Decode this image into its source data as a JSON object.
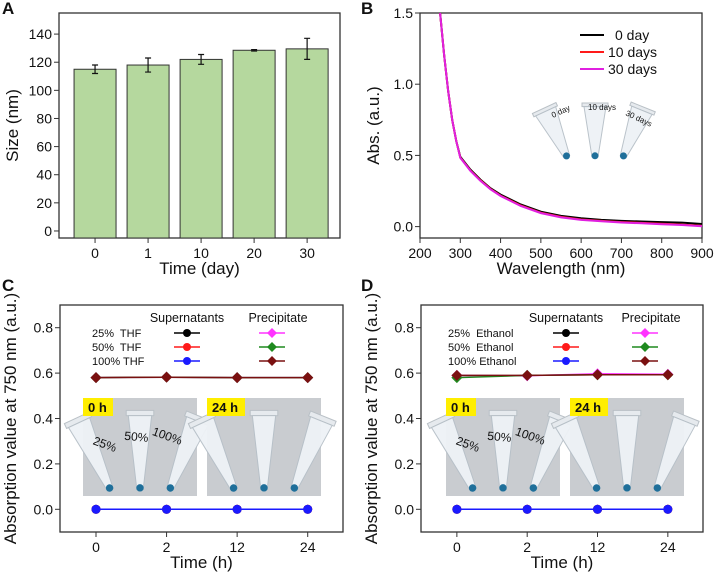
{
  "chart_data": [
    {
      "panel": "A",
      "type": "bar",
      "categories": [
        "0",
        "1",
        "10",
        "20",
        "30"
      ],
      "values": [
        115,
        118,
        122,
        128.5,
        129.5
      ],
      "errors": [
        3,
        5,
        3.5,
        0.5,
        7.5
      ],
      "xlabel": "Time (day)",
      "ylabel": "Size (nm)",
      "ylim": [
        -5,
        155
      ],
      "yticks": [
        0,
        20,
        40,
        60,
        80,
        100,
        120,
        140
      ],
      "bar_color": "#b5d89e",
      "grid": false
    },
    {
      "panel": "B",
      "type": "line",
      "x": [
        250,
        260,
        270,
        280,
        290,
        300,
        325,
        350,
        375,
        400,
        450,
        500,
        550,
        600,
        650,
        700,
        750,
        800,
        850,
        900
      ],
      "series": [
        {
          "name": "0 day",
          "color": "#000000",
          "y": [
            1.5,
            1.2,
            0.95,
            0.75,
            0.6,
            0.49,
            0.4,
            0.33,
            0.27,
            0.225,
            0.155,
            0.105,
            0.075,
            0.058,
            0.047,
            0.04,
            0.036,
            0.032,
            0.028,
            0.018
          ]
        },
        {
          "name": "10 days",
          "color": "#ff1a1a",
          "y": [
            1.5,
            1.2,
            0.95,
            0.75,
            0.6,
            0.485,
            0.395,
            0.325,
            0.265,
            0.218,
            0.148,
            0.098,
            0.068,
            0.05,
            0.04,
            0.032,
            0.026,
            0.02,
            0.014,
            0.005
          ]
        },
        {
          "name": "30 days",
          "color": "#e020e0",
          "y": [
            1.5,
            1.2,
            0.95,
            0.75,
            0.6,
            0.483,
            0.392,
            0.322,
            0.262,
            0.215,
            0.145,
            0.095,
            0.065,
            0.047,
            0.037,
            0.029,
            0.023,
            0.017,
            0.011,
            0.003
          ]
        }
      ],
      "xlabel": "Wavelength (nm)",
      "ylabel": "Abs. (a.u.)",
      "xlim": [
        200,
        900
      ],
      "ylim": [
        -0.08,
        1.5
      ],
      "xticks": [
        200,
        300,
        400,
        500,
        600,
        700,
        800,
        900
      ],
      "yticks": [
        "0.0",
        "0.5",
        "1.0",
        "1.5"
      ],
      "legend": "top-right",
      "inset_photo": {
        "tube_labels": [
          "0 day",
          "10 days",
          "30 days"
        ]
      },
      "grid": false
    },
    {
      "panel": "C",
      "type": "line",
      "categories": [
        "0",
        "2",
        "12",
        "24"
      ],
      "legend_headers": [
        "Supernatants",
        "Precipitate"
      ],
      "legend_rows": [
        "25%  THF",
        "50%  THF",
        "100% THF"
      ],
      "series": [
        {
          "name": "25% THF",
          "group": "Supernatants",
          "marker": "circle",
          "color": "#000000",
          "values": [
            0,
            0,
            0,
            0
          ]
        },
        {
          "name": "50% THF",
          "group": "Supernatants",
          "marker": "circle",
          "color": "#ff1a1a",
          "values": [
            0,
            0,
            0,
            0
          ]
        },
        {
          "name": "100% THF",
          "group": "Supernatants",
          "marker": "circle",
          "color": "#1a1aff",
          "values": [
            0,
            0,
            0,
            0
          ]
        },
        {
          "name": "25% THF",
          "group": "Precipitate",
          "marker": "diamond",
          "color": "#ff33ff",
          "values": [
            0.58,
            0.582,
            0.58,
            0.58
          ]
        },
        {
          "name": "50% THF",
          "group": "Precipitate",
          "marker": "diamond",
          "color": "#1f8a1f",
          "values": [
            0.58,
            0.582,
            0.58,
            0.58
          ]
        },
        {
          "name": "100% THF",
          "group": "Precipitate",
          "marker": "diamond",
          "color": "#7a1010",
          "values": [
            0.58,
            0.582,
            0.58,
            0.58
          ]
        }
      ],
      "xlabel": "Time (h)",
      "ylabel": "Absorption value at 750 nm (a.u.)",
      "ylim": [
        -0.1,
        0.9
      ],
      "yticks": [
        "0.0",
        "0.2",
        "0.4",
        "0.6",
        "0.8"
      ],
      "inset_photos": [
        {
          "label": "0 h",
          "tube_labels": [
            "25%",
            "50%",
            "100%"
          ]
        },
        {
          "label": "24 h",
          "tube_labels": []
        }
      ],
      "grid": false
    },
    {
      "panel": "D",
      "type": "line",
      "categories": [
        "0",
        "2",
        "12",
        "24"
      ],
      "legend_headers": [
        "Supernatants",
        "Precipitate"
      ],
      "legend_rows": [
        "25%  Ethanol",
        "50%  Ethanol",
        "100% Ethanol"
      ],
      "series": [
        {
          "name": "25% Ethanol",
          "group": "Supernatants",
          "marker": "circle",
          "color": "#000000",
          "values": [
            0,
            0,
            0,
            0
          ]
        },
        {
          "name": "50% Ethanol",
          "group": "Supernatants",
          "marker": "circle",
          "color": "#ff1a1a",
          "values": [
            0,
            0,
            0,
            0
          ]
        },
        {
          "name": "100% Ethanol",
          "group": "Supernatants",
          "marker": "circle",
          "color": "#1a1aff",
          "values": [
            0,
            0,
            0,
            0
          ]
        },
        {
          "name": "25% Ethanol",
          "group": "Precipitate",
          "marker": "diamond",
          "color": "#ff33ff",
          "values": [
            0.59,
            0.588,
            0.597,
            0.595
          ]
        },
        {
          "name": "50% Ethanol",
          "group": "Precipitate",
          "marker": "diamond",
          "color": "#1f8a1f",
          "values": [
            0.58,
            0.59,
            0.593,
            0.593
          ]
        },
        {
          "name": "100% Ethanol",
          "group": "Precipitate",
          "marker": "diamond",
          "color": "#7a1010",
          "values": [
            0.59,
            0.59,
            0.593,
            0.593
          ]
        }
      ],
      "xlabel": "Time (h)",
      "ylabel": "Absorption value at 750 nm (a.u.)",
      "ylim": [
        -0.1,
        0.9
      ],
      "yticks": [
        "0.0",
        "0.2",
        "0.4",
        "0.6",
        "0.8"
      ],
      "inset_photos": [
        {
          "label": "0 h",
          "tube_labels": [
            "25%",
            "50%",
            "100%"
          ]
        },
        {
          "label": "24 h",
          "tube_labels": []
        }
      ],
      "grid": false
    }
  ]
}
